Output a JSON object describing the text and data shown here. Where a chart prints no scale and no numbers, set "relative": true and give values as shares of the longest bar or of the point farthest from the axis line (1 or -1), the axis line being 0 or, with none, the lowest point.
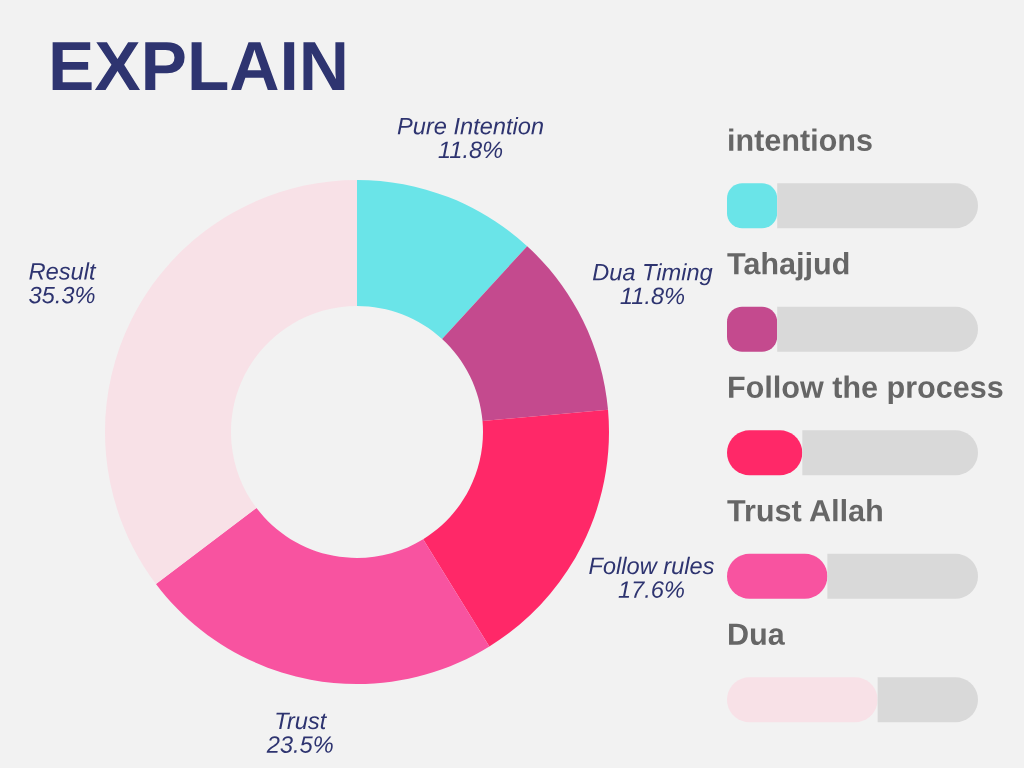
{
  "chart_data": [
    {
      "type": "donut",
      "title": "EXPLAIN",
      "categories": [
        "Pure Intention",
        "Dua Timing",
        "Follow rules",
        "Trust",
        "Result"
      ],
      "values": [
        11.8,
        11.8,
        17.6,
        23.5,
        35.3
      ],
      "value_labels": [
        "11.8%",
        "11.8%",
        "17.6%",
        "23.5%",
        "35.3%"
      ],
      "colors": [
        "#6ae4e8",
        "#c44a8e",
        "#ff2868",
        "#f853a0",
        "#f8e1e7"
      ]
    },
    {
      "type": "bar",
      "orientation": "horizontal",
      "stacked": true,
      "relative": true,
      "categories": [
        "intentions",
        "Tahajjud",
        "Follow the process",
        "Trust Allah",
        "Dua"
      ],
      "series": [
        {
          "colors": [
            "#6ae4e8",
            "#c44a8e",
            "#ff2868",
            "#f853a0",
            "#f8e1e7"
          ],
          "values": [
            0.2,
            0.2,
            0.3,
            0.4,
            0.6
          ]
        },
        {
          "color": "#d9d9d9",
          "values": [
            0.8,
            0.8,
            0.7,
            0.6,
            0.4
          ]
        }
      ]
    }
  ]
}
